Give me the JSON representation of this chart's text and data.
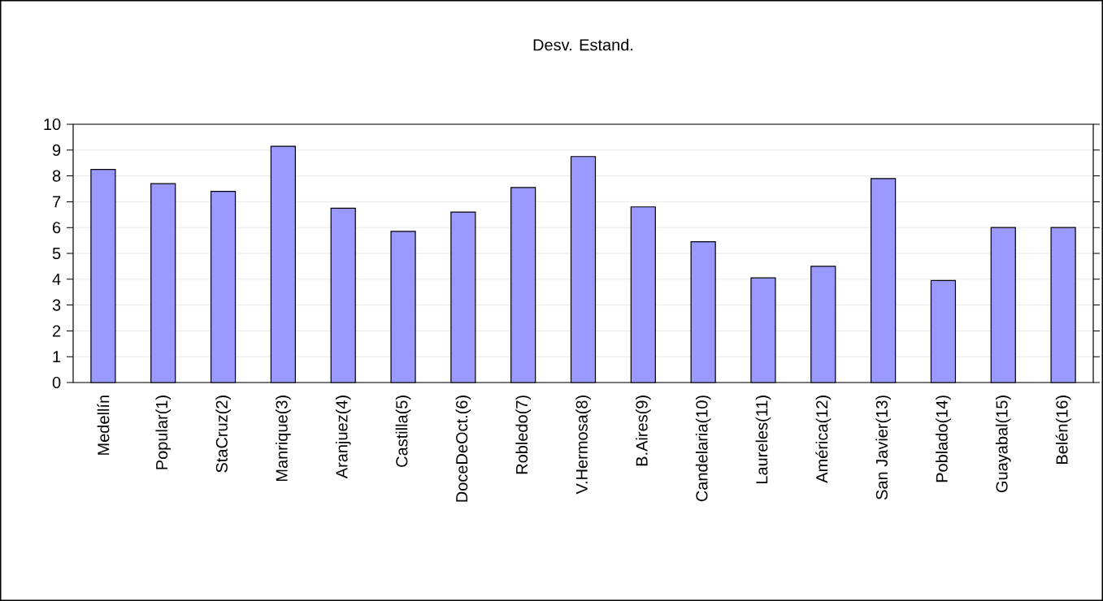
{
  "chart_data": {
    "type": "bar",
    "title": "Desv. Estand.",
    "categories": [
      "Medellín",
      "Popular(1)",
      "StaCruz(2)",
      "Manrique(3)",
      "Aranjuez(4)",
      "Castilla(5)",
      "DoceDeOct.(6)",
      "Robledo(7)",
      "V.Hermosa(8)",
      "B.Aires(9)",
      "Candelaria(10)",
      "Laureles(11)",
      "América(12)",
      "San Javier(13)",
      "Poblado(14)",
      "Guayabal(15)",
      "Belén(16)"
    ],
    "values": [
      8.25,
      7.7,
      7.4,
      9.15,
      6.75,
      5.85,
      6.6,
      7.55,
      8.75,
      6.8,
      5.45,
      4.05,
      4.5,
      7.9,
      3.95,
      6.0,
      6.0
    ],
    "color": "#9999ff",
    "ylim": [
      0,
      10
    ],
    "yticks": [
      0,
      1,
      2,
      3,
      4,
      5,
      6,
      7,
      8,
      9,
      10
    ],
    "grid": "y"
  }
}
